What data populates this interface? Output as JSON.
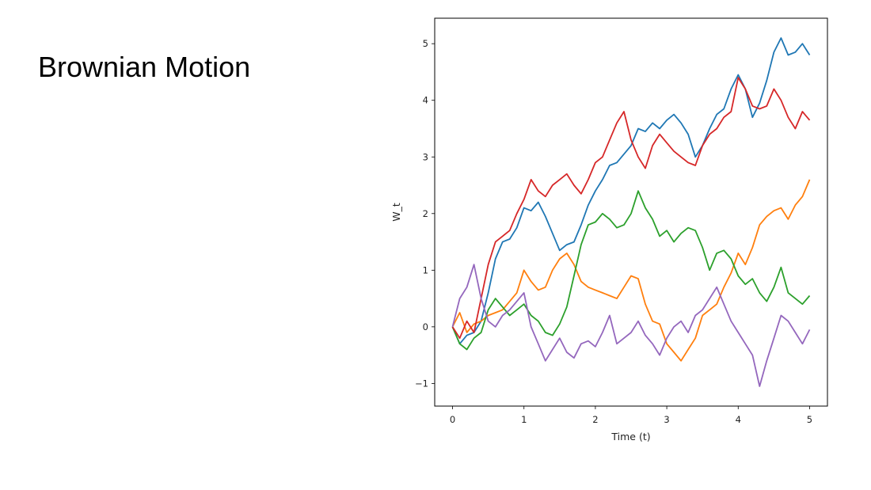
{
  "slide": {
    "title": "Brownian Motion"
  },
  "chart_data": {
    "type": "line",
    "title": "",
    "xlabel": "Time (t)",
    "ylabel": "W_t",
    "xlim": [
      -0.25,
      5.25
    ],
    "ylim": [
      -1.4,
      5.45
    ],
    "xticks": [
      0,
      1,
      2,
      3,
      4,
      5
    ],
    "yticks": [
      -1,
      0,
      1,
      2,
      3,
      4,
      5
    ],
    "xtick_labels": [
      "0",
      "1",
      "2",
      "3",
      "4",
      "5"
    ],
    "ytick_labels": [
      "−1",
      "0",
      "1",
      "2",
      "3",
      "4",
      "5"
    ],
    "grid": false,
    "legend": "none",
    "series": [
      {
        "color": "#1f77b4",
        "x": [
          0,
          0.1,
          0.2,
          0.3,
          0.4,
          0.5,
          0.6,
          0.7,
          0.8,
          0.9,
          1.0,
          1.1,
          1.2,
          1.3,
          1.4,
          1.5,
          1.6,
          1.7,
          1.8,
          1.9,
          2.0,
          2.1,
          2.2,
          2.3,
          2.4,
          2.5,
          2.6,
          2.7,
          2.8,
          2.9,
          3.0,
          3.1,
          3.2,
          3.3,
          3.4,
          3.5,
          3.6,
          3.7,
          3.8,
          3.9,
          4.0,
          4.1,
          4.2,
          4.3,
          4.4,
          4.5,
          4.6,
          4.7,
          4.8,
          4.9,
          5.0
        ],
        "y": [
          0,
          -0.3,
          -0.15,
          -0.1,
          0.1,
          0.6,
          1.2,
          1.5,
          1.55,
          1.75,
          2.1,
          2.05,
          2.2,
          1.95,
          1.65,
          1.35,
          1.45,
          1.5,
          1.8,
          2.15,
          2.4,
          2.6,
          2.85,
          2.9,
          3.05,
          3.2,
          3.5,
          3.45,
          3.6,
          3.5,
          3.65,
          3.75,
          3.6,
          3.4,
          3.0,
          3.2,
          3.5,
          3.75,
          3.85,
          4.2,
          4.45,
          4.2,
          3.7,
          3.95,
          4.35,
          4.85,
          5.1,
          4.8,
          4.85,
          5.0,
          4.8
        ]
      },
      {
        "color": "#ff7f0e",
        "x": [
          0,
          0.1,
          0.2,
          0.3,
          0.4,
          0.5,
          0.6,
          0.7,
          0.8,
          0.9,
          1.0,
          1.1,
          1.2,
          1.3,
          1.4,
          1.5,
          1.6,
          1.7,
          1.8,
          1.9,
          2.0,
          2.1,
          2.2,
          2.3,
          2.4,
          2.5,
          2.6,
          2.7,
          2.8,
          2.9,
          3.0,
          3.1,
          3.2,
          3.3,
          3.4,
          3.5,
          3.6,
          3.7,
          3.8,
          3.9,
          4.0,
          4.1,
          4.2,
          4.3,
          4.4,
          4.5,
          4.6,
          4.7,
          4.8,
          4.9,
          5.0
        ],
        "y": [
          0,
          0.25,
          -0.1,
          0.05,
          0.1,
          0.2,
          0.25,
          0.3,
          0.45,
          0.6,
          1.0,
          0.8,
          0.65,
          0.7,
          1.0,
          1.2,
          1.3,
          1.1,
          0.8,
          0.7,
          0.65,
          0.6,
          0.55,
          0.5,
          0.7,
          0.9,
          0.85,
          0.4,
          0.1,
          0.05,
          -0.3,
          -0.45,
          -0.6,
          -0.4,
          -0.2,
          0.2,
          0.3,
          0.4,
          0.7,
          0.95,
          1.3,
          1.1,
          1.4,
          1.8,
          1.95,
          2.05,
          2.1,
          1.9,
          2.15,
          2.3,
          2.6
        ]
      },
      {
        "color": "#2ca02c",
        "x": [
          0,
          0.1,
          0.2,
          0.3,
          0.4,
          0.5,
          0.6,
          0.7,
          0.8,
          0.9,
          1.0,
          1.1,
          1.2,
          1.3,
          1.4,
          1.5,
          1.6,
          1.7,
          1.8,
          1.9,
          2.0,
          2.1,
          2.2,
          2.3,
          2.4,
          2.5,
          2.6,
          2.7,
          2.8,
          2.9,
          3.0,
          3.1,
          3.2,
          3.3,
          3.4,
          3.5,
          3.6,
          3.7,
          3.8,
          3.9,
          4.0,
          4.1,
          4.2,
          4.3,
          4.4,
          4.5,
          4.6,
          4.7,
          4.8,
          4.9,
          5.0
        ],
        "y": [
          0,
          -0.3,
          -0.4,
          -0.2,
          -0.1,
          0.3,
          0.5,
          0.35,
          0.2,
          0.3,
          0.4,
          0.2,
          0.1,
          -0.1,
          -0.15,
          0.05,
          0.35,
          0.9,
          1.45,
          1.8,
          1.85,
          2.0,
          1.9,
          1.75,
          1.8,
          2.0,
          2.4,
          2.1,
          1.9,
          1.6,
          1.7,
          1.5,
          1.65,
          1.75,
          1.7,
          1.4,
          1.0,
          1.3,
          1.35,
          1.2,
          0.9,
          0.75,
          0.85,
          0.6,
          0.45,
          0.7,
          1.05,
          0.6,
          0.5,
          0.4,
          0.55
        ]
      },
      {
        "color": "#d62728",
        "x": [
          0,
          0.1,
          0.2,
          0.3,
          0.4,
          0.5,
          0.6,
          0.7,
          0.8,
          0.9,
          1.0,
          1.1,
          1.2,
          1.3,
          1.4,
          1.5,
          1.6,
          1.7,
          1.8,
          1.9,
          2.0,
          2.1,
          2.2,
          2.3,
          2.4,
          2.5,
          2.6,
          2.7,
          2.8,
          2.9,
          3.0,
          3.1,
          3.2,
          3.3,
          3.4,
          3.5,
          3.6,
          3.7,
          3.8,
          3.9,
          4.0,
          4.1,
          4.2,
          4.3,
          4.4,
          4.5,
          4.6,
          4.7,
          4.8,
          4.9,
          5.0
        ],
        "y": [
          0,
          -0.2,
          0.1,
          -0.1,
          0.5,
          1.1,
          1.5,
          1.6,
          1.7,
          2.0,
          2.25,
          2.6,
          2.4,
          2.3,
          2.5,
          2.6,
          2.7,
          2.5,
          2.35,
          2.6,
          2.9,
          3.0,
          3.3,
          3.6,
          3.8,
          3.3,
          3.0,
          2.8,
          3.2,
          3.4,
          3.25,
          3.1,
          3.0,
          2.9,
          2.85,
          3.2,
          3.4,
          3.5,
          3.7,
          3.8,
          4.4,
          4.2,
          3.9,
          3.85,
          3.9,
          4.2,
          4.0,
          3.7,
          3.5,
          3.8,
          3.65
        ]
      },
      {
        "color": "#9467bd",
        "x": [
          0,
          0.1,
          0.2,
          0.3,
          0.4,
          0.5,
          0.6,
          0.7,
          0.8,
          0.9,
          1.0,
          1.1,
          1.2,
          1.3,
          1.4,
          1.5,
          1.6,
          1.7,
          1.8,
          1.9,
          2.0,
          2.1,
          2.2,
          2.3,
          2.4,
          2.5,
          2.6,
          2.7,
          2.8,
          2.9,
          3.0,
          3.1,
          3.2,
          3.3,
          3.4,
          3.5,
          3.6,
          3.7,
          3.8,
          3.9,
          4.0,
          4.1,
          4.2,
          4.3,
          4.4,
          4.5,
          4.6,
          4.7,
          4.8,
          4.9,
          5.0
        ],
        "y": [
          0,
          0.5,
          0.7,
          1.1,
          0.5,
          0.1,
          0.0,
          0.2,
          0.3,
          0.45,
          0.6,
          0.0,
          -0.3,
          -0.6,
          -0.4,
          -0.2,
          -0.45,
          -0.55,
          -0.3,
          -0.25,
          -0.35,
          -0.1,
          0.2,
          -0.3,
          -0.2,
          -0.1,
          0.1,
          -0.15,
          -0.3,
          -0.5,
          -0.2,
          0.0,
          0.1,
          -0.1,
          0.2,
          0.3,
          0.5,
          0.7,
          0.4,
          0.1,
          -0.1,
          -0.3,
          -0.5,
          -1.05,
          -0.6,
          -0.2,
          0.2,
          0.1,
          -0.1,
          -0.3,
          -0.05
        ]
      }
    ]
  }
}
